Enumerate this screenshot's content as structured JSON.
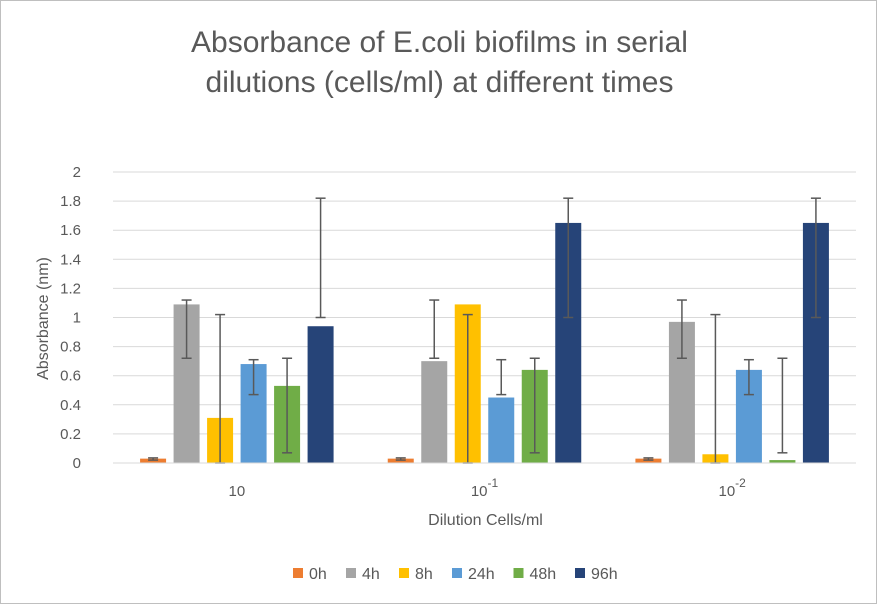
{
  "chart_data": {
    "type": "bar",
    "title_line1": "Absorbance of E.coli biofilms in serial",
    "title_line2": "dilutions (cells/ml) at different times",
    "xlabel": "Dilution Cells/ml",
    "ylabel": "Absorbance (nm)",
    "ylim": [
      0,
      2
    ],
    "yticks": [
      "0",
      "0.2",
      "0.4",
      "0.6",
      "0.8",
      "1",
      "1.2",
      "1.4",
      "1.6",
      "1.8",
      "2"
    ],
    "grid": true,
    "legend_position": "bottom",
    "categories": [
      {
        "base": "10",
        "exp": ""
      },
      {
        "base": "10",
        "exp": "-1"
      },
      {
        "base": "10",
        "exp": "-2"
      }
    ],
    "series": [
      {
        "name": "0h",
        "color": "#ed7d31",
        "values": [
          0.03,
          0.03,
          0.03
        ],
        "err_low": [
          0.02,
          0.02,
          0.02
        ],
        "err_high": [
          0.035,
          0.035,
          0.035
        ]
      },
      {
        "name": "4h",
        "color": "#a5a5a5",
        "values": [
          1.09,
          0.7,
          0.97
        ],
        "err_low": [
          0.72,
          0.72,
          0.72
        ],
        "err_high": [
          1.12,
          1.12,
          1.12
        ]
      },
      {
        "name": "8h",
        "color": "#ffc000",
        "values": [
          0.31,
          1.09,
          0.06
        ],
        "err_low": [
          0,
          0,
          0
        ],
        "err_high": [
          1.02,
          1.02,
          1.02
        ]
      },
      {
        "name": "24h",
        "color": "#5b9bd5",
        "values": [
          0.68,
          0.45,
          0.64
        ],
        "err_low": [
          0.47,
          0.47,
          0.47
        ],
        "err_high": [
          0.71,
          0.71,
          0.71
        ]
      },
      {
        "name": "48h",
        "color": "#70ad47",
        "values": [
          0.53,
          0.64,
          0.02
        ],
        "err_low": [
          0.07,
          0.07,
          0.07
        ],
        "err_high": [
          0.72,
          0.72,
          0.72
        ]
      },
      {
        "name": "96h",
        "color": "#264478",
        "values": [
          0.94,
          1.65,
          1.65
        ],
        "err_low": [
          1.0,
          1.0,
          1.0
        ],
        "err_high": [
          1.82,
          1.82,
          1.82
        ]
      }
    ]
  }
}
